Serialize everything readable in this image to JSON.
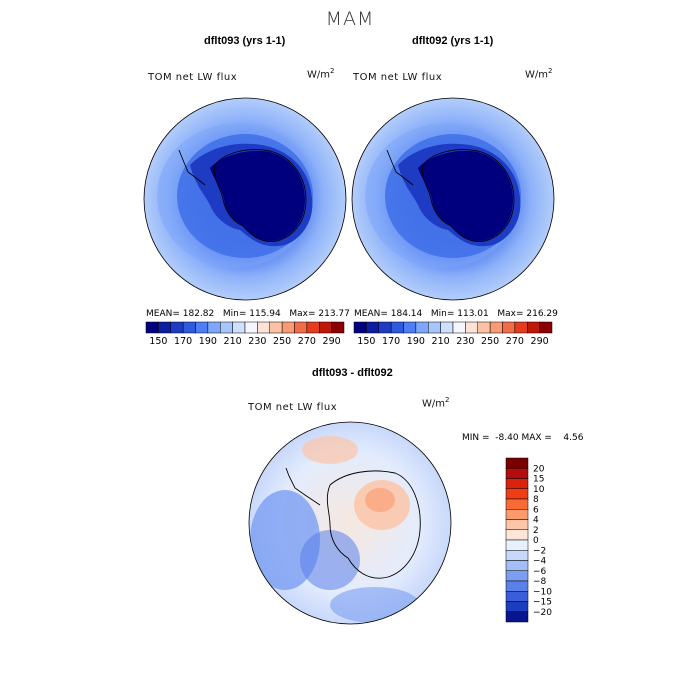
{
  "title": "MAM",
  "panels": [
    {
      "title": "dflt093 (yrs 1-1)",
      "variable": "TOM net LW flux",
      "units_base": "W/m",
      "units_exp": "2",
      "stats": {
        "mean_label": "MEAN=",
        "mean": "182.82",
        "min_label": "Min=",
        "min": "115.94",
        "max_label": "Max=",
        "max": "213.77"
      }
    },
    {
      "title": "dflt092 (yrs 1-1)",
      "variable": "TOM net LW flux",
      "units_base": "W/m",
      "units_exp": "2",
      "stats": {
        "mean_label": "MEAN=",
        "mean": "184.14",
        "min_label": "Min=",
        "min": "113.01",
        "max_label": "Max=",
        "max": "216.29"
      }
    }
  ],
  "diff_panel": {
    "title": "dflt093 - dflt092",
    "variable": "TOM net LW flux",
    "units_base": "W/m",
    "units_exp": "2",
    "stats": {
      "min_label": "MIN =",
      "min": "-8.40",
      "max_label": "MAX =",
      "max": "4.56"
    }
  },
  "chart_data": [
    {
      "type": "heatmap",
      "title": "dflt093 (yrs 1-1)",
      "projection": "south-polar-stereographic",
      "variable": "TOM net LW flux",
      "units": "W/m2",
      "stats": {
        "mean": 182.82,
        "min": 115.94,
        "max": 213.77
      },
      "colorbar": {
        "levels": [
          140,
          150,
          160,
          170,
          180,
          190,
          200,
          210,
          220,
          230,
          240,
          250,
          260,
          270,
          280,
          290,
          300
        ],
        "tick_labels": [
          "150",
          "170",
          "190",
          "210",
          "230",
          "250",
          "270",
          "290"
        ]
      }
    },
    {
      "type": "heatmap",
      "title": "dflt092 (yrs 1-1)",
      "projection": "south-polar-stereographic",
      "variable": "TOM net LW flux",
      "units": "W/m2",
      "stats": {
        "mean": 184.14,
        "min": 113.01,
        "max": 216.29
      },
      "colorbar": {
        "levels": [
          140,
          150,
          160,
          170,
          180,
          190,
          200,
          210,
          220,
          230,
          240,
          250,
          260,
          270,
          280,
          290,
          300
        ],
        "tick_labels": [
          "150",
          "170",
          "190",
          "210",
          "230",
          "250",
          "270",
          "290"
        ]
      }
    },
    {
      "type": "heatmap",
      "title": "dflt093 - dflt092",
      "projection": "south-polar-stereographic",
      "variable": "TOM net LW flux",
      "units": "W/m2",
      "stats": {
        "min": -8.4,
        "max": 4.56
      },
      "colorbar": {
        "orientation": "vertical",
        "tick_labels": [
          "20",
          "15",
          "10",
          "8",
          "6",
          "4",
          "2",
          "0",
          "−2",
          "−4",
          "−6",
          "−8",
          "−10",
          "−15",
          "−20"
        ]
      }
    }
  ],
  "colors": {
    "abs_scale": [
      "#00007f",
      "#0d1ea0",
      "#1e3cc3",
      "#2e5ae0",
      "#4f7df5",
      "#7ea6fa",
      "#a7c6fc",
      "#cfe0fd",
      "#f4f6ff",
      "#fde3d5",
      "#fcc2a5",
      "#f89a74",
      "#f26c47",
      "#e33c1f",
      "#c01808",
      "#8b0000"
    ],
    "diff_scale": [
      "#7a0000",
      "#b40c0c",
      "#d9230f",
      "#ef3e14",
      "#f86b36",
      "#fb9a6c",
      "#fcc5a8",
      "#fde6d8",
      "#e8f0fe",
      "#c8d8fb",
      "#a3bdf7",
      "#7b9ef2",
      "#5b80ea",
      "#3a5ed9",
      "#1d3dc0",
      "#07158f"
    ],
    "land": "#00008b",
    "ocean_mid": "#3f6ee8",
    "ocean_outer": "#a9c6fa"
  }
}
